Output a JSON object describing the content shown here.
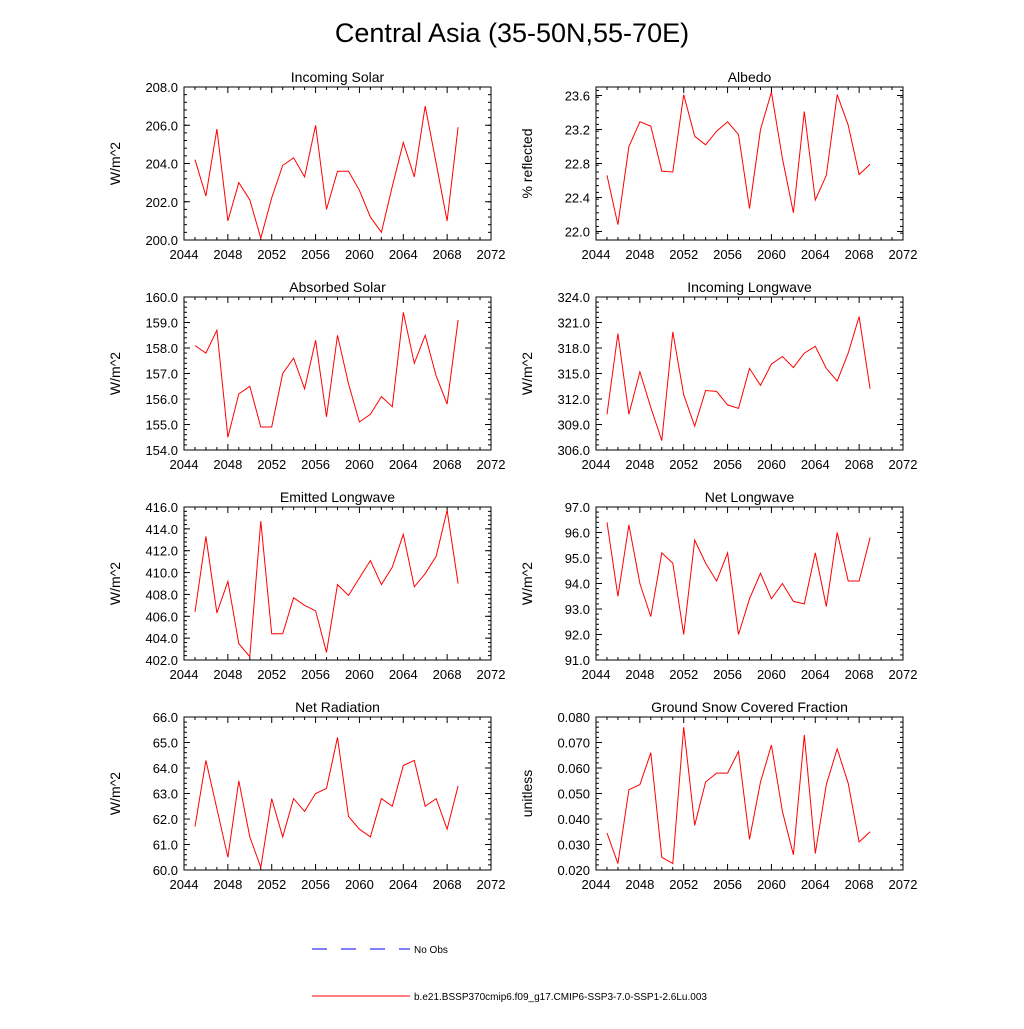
{
  "figure": {
    "title": "Central Asia (35-50N,55-70E)",
    "line_color": "#ff0000",
    "obs_color": "#0000ff",
    "legend": {
      "obs_label": "No Obs",
      "model_label": "b.e21.BSSP370cmip6.f09_g17.CMIP6-SSP3-7.0-SSP1-2.6Lu.003"
    }
  },
  "chart_data": [
    {
      "type": "line",
      "title": "Incoming Solar",
      "ylabel": "W/m^2",
      "xlim": [
        2044,
        2072
      ],
      "ylim": [
        200.0,
        208.0
      ],
      "xticks": [
        "2044",
        "2048",
        "2052",
        "2056",
        "2060",
        "2064",
        "2068",
        "2072"
      ],
      "yticks": [
        "200.0",
        "202.0",
        "204.0",
        "206.0",
        "208.0"
      ],
      "series": [
        {
          "x": [
            2045,
            2046,
            2047,
            2048,
            2049,
            2050,
            2051,
            2052,
            2053,
            2054,
            2055,
            2056,
            2057,
            2058,
            2059,
            2060,
            2061,
            2062,
            2063,
            2064,
            2065,
            2066,
            2067,
            2068,
            2069
          ],
          "values": [
            204.2,
            202.3,
            205.8,
            201.0,
            203.0,
            202.1,
            200.1,
            202.2,
            203.9,
            204.3,
            203.3,
            206.0,
            201.6,
            203.6,
            203.6,
            202.6,
            201.2,
            200.4,
            202.8,
            205.1,
            203.3,
            207.0,
            204.0,
            201.0,
            205.9
          ]
        }
      ]
    },
    {
      "type": "line",
      "title": "Albedo",
      "ylabel": "% reflected",
      "xlim": [
        2044,
        2072
      ],
      "ylim": [
        21.9,
        23.7
      ],
      "xticks": [
        "2044",
        "2048",
        "2052",
        "2056",
        "2060",
        "2064",
        "2068",
        "2072"
      ],
      "yticks": [
        "22.0",
        "22.4",
        "22.8",
        "23.2",
        "23.6"
      ],
      "series": [
        {
          "x": [
            2045,
            2046,
            2047,
            2048,
            2049,
            2050,
            2051,
            2052,
            2053,
            2054,
            2055,
            2056,
            2057,
            2058,
            2059,
            2060,
            2061,
            2062,
            2063,
            2064,
            2065,
            2066,
            2067,
            2068,
            2069
          ],
          "values": [
            22.66,
            22.08,
            23.0,
            23.29,
            23.24,
            22.71,
            22.7,
            23.61,
            23.12,
            23.02,
            23.18,
            23.29,
            23.14,
            22.27,
            23.2,
            23.64,
            22.86,
            22.22,
            23.41,
            22.37,
            22.66,
            23.61,
            23.25,
            22.67,
            22.79
          ]
        }
      ]
    },
    {
      "type": "line",
      "title": "Absorbed Solar",
      "ylabel": "W/m^2",
      "xlim": [
        2044,
        2072
      ],
      "ylim": [
        154.0,
        160.0
      ],
      "xticks": [
        "2044",
        "2048",
        "2052",
        "2056",
        "2060",
        "2064",
        "2068",
        "2072"
      ],
      "yticks": [
        "154.0",
        "155.0",
        "156.0",
        "157.0",
        "158.0",
        "159.0",
        "160.0"
      ],
      "series": [
        {
          "x": [
            2045,
            2046,
            2047,
            2048,
            2049,
            2050,
            2051,
            2052,
            2053,
            2054,
            2055,
            2056,
            2057,
            2058,
            2059,
            2060,
            2061,
            2062,
            2063,
            2064,
            2065,
            2066,
            2067,
            2068,
            2069
          ],
          "values": [
            158.1,
            157.8,
            158.7,
            154.5,
            156.2,
            156.5,
            154.9,
            154.9,
            157.0,
            157.6,
            156.4,
            158.3,
            155.3,
            158.5,
            156.6,
            155.1,
            155.4,
            156.1,
            155.7,
            159.4,
            157.4,
            158.5,
            156.9,
            155.8,
            159.1
          ]
        }
      ]
    },
    {
      "type": "line",
      "title": "Incoming Longwave",
      "ylabel": "W/m^2",
      "xlim": [
        2044,
        2072
      ],
      "ylim": [
        306.0,
        324.0
      ],
      "xticks": [
        "2044",
        "2048",
        "2052",
        "2056",
        "2060",
        "2064",
        "2068",
        "2072"
      ],
      "yticks": [
        "306.0",
        "309.0",
        "312.0",
        "315.0",
        "318.0",
        "321.0",
        "324.0"
      ],
      "series": [
        {
          "x": [
            2045,
            2046,
            2047,
            2048,
            2049,
            2050,
            2051,
            2052,
            2053,
            2054,
            2055,
            2056,
            2057,
            2058,
            2059,
            2060,
            2061,
            2062,
            2063,
            2064,
            2065,
            2066,
            2067,
            2068,
            2069
          ],
          "values": [
            310.2,
            319.7,
            310.2,
            315.2,
            311.0,
            307.1,
            319.9,
            312.5,
            308.8,
            313.0,
            312.9,
            311.3,
            310.9,
            315.6,
            313.6,
            316.1,
            317.0,
            315.7,
            317.4,
            318.2,
            315.6,
            314.1,
            317.4,
            321.7,
            313.2
          ]
        }
      ]
    },
    {
      "type": "line",
      "title": "Emitted Longwave",
      "ylabel": "W/m^2",
      "xlim": [
        2044,
        2072
      ],
      "ylim": [
        402.0,
        416.0
      ],
      "xticks": [
        "2044",
        "2048",
        "2052",
        "2056",
        "2060",
        "2064",
        "2068",
        "2072"
      ],
      "yticks": [
        "402.0",
        "404.0",
        "406.0",
        "408.0",
        "410.0",
        "412.0",
        "414.0",
        "416.0"
      ],
      "series": [
        {
          "x": [
            2045,
            2046,
            2047,
            2048,
            2049,
            2050,
            2051,
            2052,
            2053,
            2054,
            2055,
            2056,
            2057,
            2058,
            2059,
            2060,
            2061,
            2062,
            2063,
            2064,
            2065,
            2066,
            2067,
            2068,
            2069
          ],
          "values": [
            406.4,
            413.3,
            406.3,
            409.2,
            403.5,
            402.3,
            414.7,
            404.4,
            404.4,
            407.7,
            407.0,
            406.5,
            402.7,
            408.9,
            407.9,
            409.5,
            411.1,
            408.9,
            410.5,
            413.5,
            408.7,
            409.9,
            411.5,
            415.7,
            409.0
          ]
        }
      ]
    },
    {
      "type": "line",
      "title": "Net Longwave",
      "ylabel": "W/m^2",
      "xlim": [
        2044,
        2072
      ],
      "ylim": [
        91.0,
        97.0
      ],
      "xticks": [
        "2044",
        "2048",
        "2052",
        "2056",
        "2060",
        "2064",
        "2068",
        "2072"
      ],
      "yticks": [
        "91.0",
        "92.0",
        "93.0",
        "94.0",
        "95.0",
        "96.0",
        "97.0"
      ],
      "series": [
        {
          "x": [
            2045,
            2046,
            2047,
            2048,
            2049,
            2050,
            2051,
            2052,
            2053,
            2054,
            2055,
            2056,
            2057,
            2058,
            2059,
            2060,
            2061,
            2062,
            2063,
            2064,
            2065,
            2066,
            2067,
            2068,
            2069
          ],
          "values": [
            96.4,
            93.5,
            96.3,
            94.0,
            92.7,
            95.2,
            94.8,
            92.0,
            95.7,
            94.8,
            94.1,
            95.2,
            92.0,
            93.4,
            94.4,
            93.4,
            94.0,
            93.3,
            93.2,
            95.2,
            93.1,
            96.0,
            94.1,
            94.1,
            95.8
          ]
        }
      ]
    },
    {
      "type": "line",
      "title": "Net Radiation",
      "ylabel": "W/m^2",
      "xlim": [
        2044,
        2072
      ],
      "ylim": [
        60.0,
        66.0
      ],
      "xticks": [
        "2044",
        "2048",
        "2052",
        "2056",
        "2060",
        "2064",
        "2068",
        "2072"
      ],
      "yticks": [
        "60.0",
        "61.0",
        "62.0",
        "63.0",
        "64.0",
        "65.0",
        "66.0"
      ],
      "series": [
        {
          "x": [
            2045,
            2046,
            2047,
            2048,
            2049,
            2050,
            2051,
            2052,
            2053,
            2054,
            2055,
            2056,
            2057,
            2058,
            2059,
            2060,
            2061,
            2062,
            2063,
            2064,
            2065,
            2066,
            2067,
            2068,
            2069
          ],
          "values": [
            61.7,
            64.3,
            62.4,
            60.5,
            63.5,
            61.3,
            60.1,
            62.8,
            61.3,
            62.8,
            62.3,
            63.0,
            63.2,
            65.2,
            62.1,
            61.6,
            61.3,
            62.8,
            62.5,
            64.1,
            64.3,
            62.5,
            62.8,
            61.6,
            63.3
          ]
        }
      ]
    },
    {
      "type": "line",
      "title": "Ground Snow Covered Fraction",
      "ylabel": "unitless",
      "xlim": [
        2044,
        2072
      ],
      "ylim": [
        0.02,
        0.08
      ],
      "xticks": [
        "2044",
        "2048",
        "2052",
        "2056",
        "2060",
        "2064",
        "2068",
        "2072"
      ],
      "yticks": [
        "0.020",
        "0.030",
        "0.040",
        "0.050",
        "0.060",
        "0.070",
        "0.080"
      ],
      "series": [
        {
          "x": [
            2045,
            2046,
            2047,
            2048,
            2049,
            2050,
            2051,
            2052,
            2053,
            2054,
            2055,
            2056,
            2057,
            2058,
            2059,
            2060,
            2061,
            2062,
            2063,
            2064,
            2065,
            2066,
            2067,
            2068,
            2069
          ],
          "values": [
            0.0345,
            0.0225,
            0.0515,
            0.0535,
            0.066,
            0.025,
            0.0225,
            0.076,
            0.0375,
            0.0545,
            0.058,
            0.058,
            0.0665,
            0.032,
            0.0545,
            0.069,
            0.043,
            0.026,
            0.073,
            0.0265,
            0.0535,
            0.0675,
            0.054,
            0.031,
            0.035
          ]
        }
      ]
    }
  ]
}
